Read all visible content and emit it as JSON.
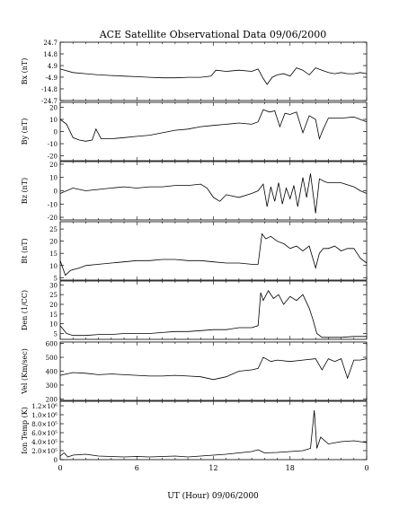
{
  "title": "ACE Satellite Observational Data   09/06/2000",
  "xlabel": "UT (Hour)   09/06/2000",
  "x_ticks": [
    "0",
    "6",
    "12",
    "18",
    "0"
  ],
  "chart_data": [
    {
      "type": "line",
      "ylabel": "Bx (nT)",
      "yticks": [
        "24.7",
        "14.8",
        "4.9",
        "-4.9",
        "-14.8",
        "-24.7"
      ],
      "ylim": [
        -24.7,
        24.7
      ],
      "xlim": [
        0,
        24
      ],
      "series": [
        {
          "x": [
            0,
            1,
            2,
            3,
            4,
            5,
            6,
            7,
            8,
            9,
            10,
            11,
            11.8,
            12.2,
            13,
            14,
            15,
            15.5,
            15.9,
            16.2,
            16.6,
            17,
            17.5,
            18,
            18.5,
            19,
            19.5,
            20,
            20.5,
            21,
            21.5,
            22,
            22.5,
            23,
            23.5,
            24
          ],
          "y": [
            2,
            -1,
            -2,
            -3,
            -3.5,
            -4,
            -4.5,
            -5,
            -5.5,
            -5.5,
            -5,
            -5,
            -4,
            1,
            0,
            1,
            0,
            2,
            -6,
            -11,
            -5,
            -3,
            -2,
            -4,
            3,
            1,
            -3,
            3,
            1,
            -1,
            -2,
            -1,
            -2,
            -2,
            -1,
            -2
          ]
        }
      ]
    },
    {
      "type": "line",
      "ylabel": "By (nT)",
      "yticks": [
        "20",
        "10",
        "0",
        "-10",
        "-20"
      ],
      "ylim": [
        -24,
        24
      ],
      "xlim": [
        0,
        24
      ],
      "series": [
        {
          "x": [
            0,
            0.5,
            1,
            1.5,
            2,
            2.5,
            2.8,
            3.2,
            4,
            5,
            6,
            7,
            8,
            9,
            10,
            11,
            12,
            13,
            14,
            15,
            15.5,
            15.9,
            16.4,
            16.8,
            17.2,
            17.6,
            18,
            18.5,
            19,
            19.5,
            20,
            20.3,
            20.6,
            21,
            22,
            23,
            24
          ],
          "y": [
            10,
            6,
            -5,
            -7,
            -8,
            -7,
            2,
            -6,
            -6,
            -5,
            -4,
            -3,
            -1,
            1,
            2,
            4,
            5,
            6,
            7,
            6,
            8,
            18,
            16,
            17,
            4,
            15,
            14,
            16,
            -1,
            13,
            10,
            -6,
            2,
            11,
            11,
            12,
            8
          ]
        }
      ]
    },
    {
      "type": "line",
      "ylabel": "Bz (nT)",
      "yticks": [
        "20",
        "10",
        "0",
        "-10",
        "-20"
      ],
      "ylim": [
        -22,
        22
      ],
      "xlim": [
        0,
        24
      ],
      "series": [
        {
          "x": [
            0,
            1,
            2,
            3,
            4,
            5,
            6,
            7,
            8,
            9,
            10,
            11,
            11.5,
            12,
            12.5,
            13,
            14,
            15,
            15.5,
            15.9,
            16.2,
            16.5,
            16.8,
            17.1,
            17.4,
            17.7,
            18,
            18.3,
            18.6,
            19,
            19.3,
            19.6,
            20,
            20.3,
            20.7,
            21,
            22,
            23,
            23.5,
            24
          ],
          "y": [
            -2,
            2,
            0,
            1,
            2,
            3,
            2,
            3,
            3,
            4,
            4,
            5,
            2,
            -5,
            -8,
            -3,
            -5,
            -2,
            0,
            5,
            -12,
            3,
            -8,
            6,
            -10,
            2,
            -6,
            4,
            -12,
            10,
            -5,
            13,
            -17,
            9,
            7,
            6,
            6,
            3,
            0,
            -2
          ]
        }
      ]
    },
    {
      "type": "line",
      "ylabel": "Bt (nT)",
      "yticks": [
        "25",
        "20",
        "15",
        "10",
        "5"
      ],
      "ylim": [
        4,
        28
      ],
      "xlim": [
        0,
        24
      ],
      "series": [
        {
          "x": [
            0,
            0.4,
            0.8,
            1.5,
            2,
            3,
            4,
            5,
            6,
            7,
            8,
            9,
            10,
            11,
            12,
            13,
            14,
            15,
            15.5,
            15.8,
            16.1,
            16.5,
            17,
            17.5,
            18,
            18.5,
            19,
            19.5,
            20,
            20.3,
            20.6,
            21,
            21.5,
            22,
            22.5,
            23,
            23.5,
            24
          ],
          "y": [
            12,
            6,
            8,
            9,
            10,
            10.5,
            11,
            11.5,
            12,
            12,
            12.5,
            12.5,
            12,
            12,
            11.5,
            11,
            11,
            10.5,
            10.5,
            23,
            21,
            22,
            20,
            19,
            17,
            18,
            16,
            18,
            9,
            15,
            17,
            17,
            18,
            16,
            17,
            17,
            13,
            11
          ]
        }
      ]
    },
    {
      "type": "line",
      "ylabel": "Den (1/CC)",
      "yticks": [
        "30",
        "25",
        "20",
        "15",
        "10",
        "5"
      ],
      "ylim": [
        2,
        32
      ],
      "xlim": [
        0,
        24
      ],
      "series": [
        {
          "x": [
            0,
            0.5,
            1,
            2,
            3,
            4,
            5,
            6,
            7,
            8,
            9,
            10,
            11,
            12,
            13,
            14,
            15,
            15.5,
            15.7,
            15.9,
            16.3,
            16.7,
            17.1,
            17.5,
            18,
            18.5,
            19,
            19.5,
            19.8,
            20.1,
            20.5,
            21,
            22,
            23,
            24
          ],
          "y": [
            9,
            5,
            4,
            4,
            4.5,
            4.5,
            5,
            5,
            5,
            5.5,
            6,
            6,
            6.5,
            7,
            7,
            8,
            8,
            9,
            26,
            22,
            27,
            23,
            25,
            20,
            24,
            22,
            25,
            18,
            12,
            5,
            3,
            3,
            3,
            3.5,
            3.5
          ]
        }
      ]
    },
    {
      "type": "line",
      "ylabel": "Vel (Km/sec)",
      "yticks": [
        "600",
        "500",
        "400",
        "300",
        "200"
      ],
      "ylim": [
        190,
        610
      ],
      "xlim": [
        0,
        24
      ],
      "series": [
        {
          "x": [
            0,
            1,
            2,
            3,
            4,
            5,
            6,
            7,
            8,
            9,
            10,
            11,
            12,
            13,
            14,
            15,
            15.5,
            15.9,
            16.5,
            17,
            18,
            19,
            20,
            20.5,
            21,
            21.5,
            22,
            22.5,
            23,
            23.5,
            24
          ],
          "y": [
            370,
            390,
            385,
            375,
            380,
            375,
            370,
            365,
            365,
            370,
            365,
            360,
            340,
            360,
            400,
            410,
            420,
            500,
            470,
            480,
            470,
            480,
            490,
            410,
            490,
            470,
            490,
            350,
            480,
            480,
            490
          ]
        }
      ]
    },
    {
      "type": "line",
      "ylabel": "Ion Temp (K)",
      "yticks": [
        "1.2×10⁶",
        "1.0×10⁶",
        "8.0×10⁵",
        "6.0×10⁵",
        "4.0×10⁵",
        "2.0×10⁵",
        "0"
      ],
      "ylim": [
        0,
        1300000
      ],
      "xlim": [
        0,
        24
      ],
      "series": [
        {
          "x": [
            0,
            0.3,
            0.6,
            1,
            2,
            3,
            4,
            5,
            6,
            7,
            8,
            9,
            10,
            11,
            12,
            13,
            14,
            15,
            15.5,
            16,
            17,
            18,
            19,
            19.6,
            19.9,
            20.1,
            20.4,
            21,
            22,
            23,
            24
          ],
          "y": [
            80000,
            150000,
            60000,
            100000,
            120000,
            80000,
            70000,
            60000,
            70000,
            60000,
            70000,
            80000,
            60000,
            80000,
            100000,
            120000,
            150000,
            180000,
            220000,
            150000,
            160000,
            180000,
            200000,
            250000,
            1100000,
            250000,
            500000,
            350000,
            400000,
            420000,
            380000
          ]
        }
      ]
    }
  ]
}
